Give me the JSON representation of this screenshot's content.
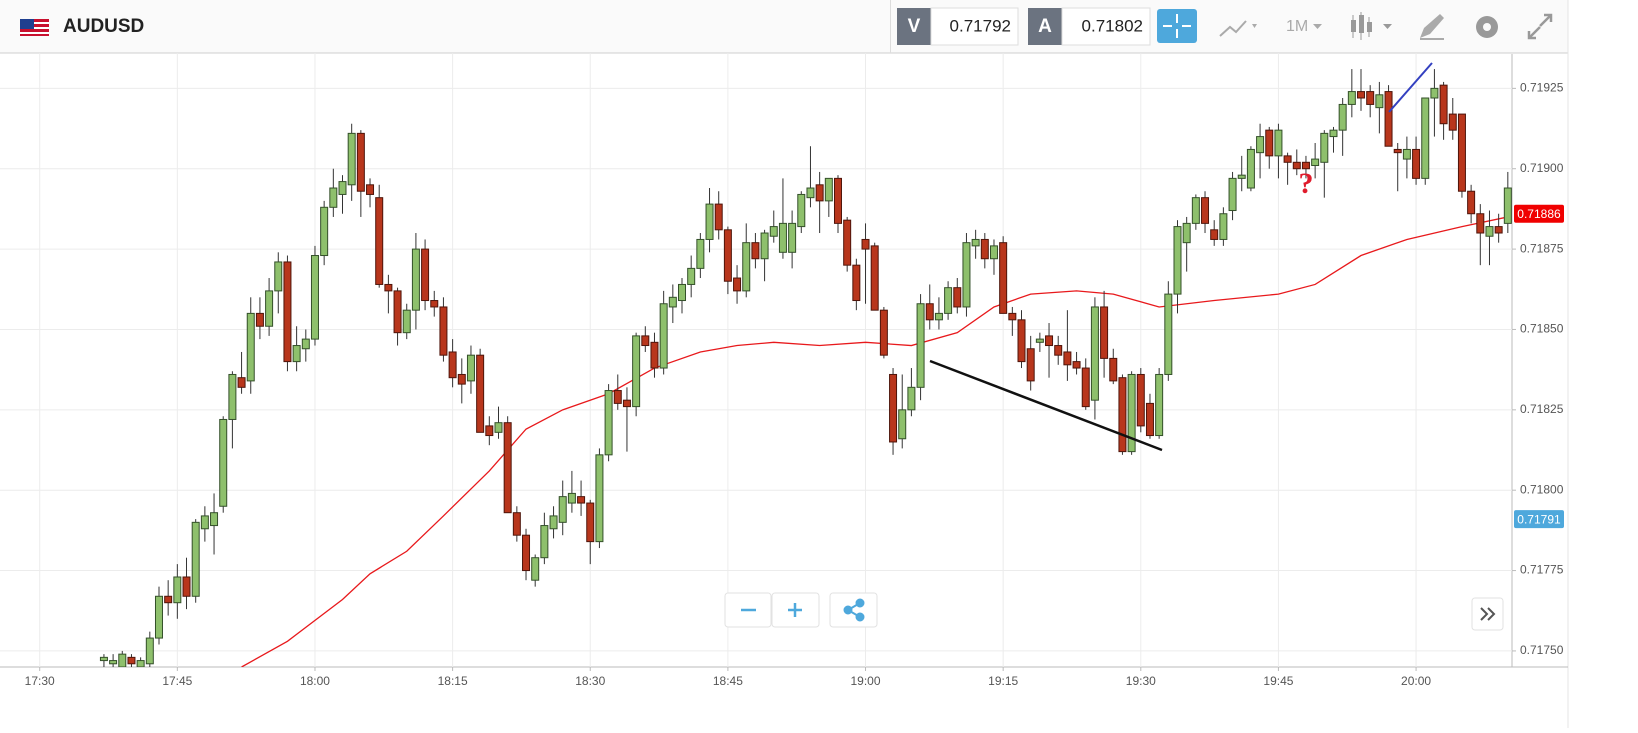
{
  "header": {
    "symbol": "AUDUSD",
    "bid_label": "V",
    "bid": "0.71792",
    "ask_label": "A",
    "ask": "0.71802",
    "timeframe": "1M"
  },
  "chart_data": {
    "type": "candlestick",
    "x": [
      "17:37",
      "17:38",
      "17:39",
      "17:40",
      "17:41",
      "17:42",
      "17:43",
      "17:44",
      "17:45",
      "17:46",
      "17:47",
      "17:48",
      "17:49",
      "17:50",
      "17:51",
      "17:52",
      "17:53",
      "17:54",
      "17:55",
      "17:56",
      "17:57",
      "17:58",
      "17:59",
      "18:00",
      "18:01",
      "18:02",
      "18:03",
      "18:04",
      "18:05",
      "18:06",
      "18:07",
      "18:08",
      "18:09",
      "18:10",
      "18:11",
      "18:12",
      "18:13",
      "18:14",
      "18:15",
      "18:16",
      "18:17",
      "18:18",
      "18:19",
      "18:20",
      "18:21",
      "18:22",
      "18:23",
      "18:24",
      "18:25",
      "18:26",
      "18:27",
      "18:28",
      "18:29",
      "18:30",
      "18:31",
      "18:32",
      "18:33",
      "18:34",
      "18:35",
      "18:36",
      "18:37",
      "18:38",
      "18:39",
      "18:40",
      "18:41",
      "18:42",
      "18:43",
      "18:44",
      "18:45",
      "18:46",
      "18:47",
      "18:48",
      "18:49",
      "18:50",
      "18:51",
      "18:52",
      "18:53",
      "18:54",
      "18:55",
      "18:56",
      "18:57",
      "18:58",
      "18:59",
      "19:00",
      "19:01",
      "19:02",
      "19:03",
      "19:04",
      "19:05",
      "19:06",
      "19:07",
      "19:08",
      "19:09",
      "19:10",
      "19:11",
      "19:12",
      "19:13",
      "19:14",
      "19:15",
      "19:16",
      "19:17",
      "19:18",
      "19:19",
      "19:20",
      "19:21",
      "19:22",
      "19:23",
      "19:24",
      "19:25",
      "19:26",
      "19:27",
      "19:28",
      "19:29",
      "19:30",
      "19:31",
      "19:32",
      "19:33",
      "19:34",
      "19:35",
      "19:36",
      "19:37",
      "19:38",
      "19:39",
      "19:40",
      "19:41",
      "19:42",
      "19:43",
      "19:44",
      "19:45",
      "19:46",
      "19:47",
      "19:48",
      "19:49",
      "19:50",
      "19:51",
      "19:52",
      "19:53",
      "19:54",
      "19:55",
      "19:56",
      "19:57",
      "19:58",
      "19:59",
      "20:00",
      "20:01",
      "20:02",
      "20:03",
      "20:04",
      "20:05",
      "20:06",
      "20:07",
      "20:08",
      "20:09",
      "20:10"
    ],
    "open": [
      0.71747,
      0.71746,
      0.71745,
      0.71748,
      0.71745,
      0.71746,
      0.71754,
      0.71767,
      0.71765,
      0.71773,
      0.71767,
      0.71788,
      0.71789,
      0.71795,
      0.71822,
      0.71835,
      0.71834,
      0.71855,
      0.71851,
      0.71862,
      0.71871,
      0.7184,
      0.71844,
      0.71847,
      0.71873,
      0.71888,
      0.71892,
      0.71895,
      0.71911,
      0.71895,
      0.71891,
      0.71864,
      0.71862,
      0.71849,
      0.71856,
      0.71875,
      0.71859,
      0.71857,
      0.71843,
      0.71836,
      0.71834,
      0.71842,
      0.7182,
      0.71818,
      0.71821,
      0.71793,
      0.71786,
      0.71772,
      0.71779,
      0.71788,
      0.7179,
      0.71796,
      0.71798,
      0.71796,
      0.71784,
      0.71811,
      0.71831,
      0.71828,
      0.71826,
      0.71848,
      0.71846,
      0.71838,
      0.71857,
      0.71859,
      0.71864,
      0.71869,
      0.71878,
      0.71889,
      0.71881,
      0.71866,
      0.71862,
      0.71877,
      0.71872,
      0.71879,
      0.71874,
      0.71874,
      0.71882,
      0.71891,
      0.71895,
      0.7189,
      0.71897,
      0.71884,
      0.7187,
      0.71878,
      0.71876,
      0.71856,
      0.71836,
      0.71816,
      0.71825,
      0.71832,
      0.71858,
      0.71853,
      0.71855,
      0.71863,
      0.71857,
      0.71876,
      0.71878,
      0.71872,
      0.71877,
      0.71855,
      0.71853,
      0.71844,
      0.71846,
      0.71848,
      0.71845,
      0.71843,
      0.7184,
      0.71838,
      0.71828,
      0.71857,
      0.71841,
      0.71835,
      0.71812,
      0.71836,
      0.71827,
      0.71817,
      0.71836,
      0.71861,
      0.71877,
      0.71883,
      0.71891,
      0.71881,
      0.71878,
      0.71887,
      0.71897,
      0.71894,
      0.71905,
      0.71912,
      0.71904,
      0.71904,
      0.71902,
      0.71902,
      0.71901,
      0.71902,
      0.7191,
      0.71912,
      0.7192,
      0.71924,
      0.71924,
      0.71919,
      0.71924,
      0.71906,
      0.71903,
      0.71906,
      0.71897,
      0.71922,
      0.71926,
      0.71917,
      0.71917,
      0.71893,
      0.71886,
      0.71879,
      0.71882,
      0.71883
    ],
    "high": [
      0.71749,
      0.71749,
      0.7175,
      0.71749,
      0.71748,
      0.71756,
      0.7177,
      0.71772,
      0.71777,
      0.71779,
      0.71791,
      0.71795,
      0.71799,
      0.71823,
      0.71837,
      0.71843,
      0.7186,
      0.7186,
      0.71866,
      0.71874,
      0.71873,
      0.71851,
      0.7185,
      0.71876,
      0.7189,
      0.719,
      0.71898,
      0.71914,
      0.71912,
      0.71897,
      0.71895,
      0.71867,
      0.71863,
      0.71858,
      0.7188,
      0.71878,
      0.71862,
      0.7186,
      0.71847,
      0.71841,
      0.71845,
      0.71844,
      0.71823,
      0.71826,
      0.71823,
      0.71795,
      0.71788,
      0.7178,
      0.71793,
      0.71795,
      0.71803,
      0.71806,
      0.71803,
      0.71797,
      0.71813,
      0.71833,
      0.71836,
      0.71832,
      0.71849,
      0.71851,
      0.71849,
      0.71862,
      0.71864,
      0.71866,
      0.71873,
      0.7188,
      0.71894,
      0.71893,
      0.71882,
      0.7187,
      0.71883,
      0.7188,
      0.71881,
      0.71887,
      0.71897,
      0.71887,
      0.71893,
      0.71907,
      0.71899,
      0.71897,
      0.71898,
      0.71885,
      0.71872,
      0.71883,
      0.71877,
      0.71857,
      0.71838,
      0.71836,
      0.71838,
      0.71861,
      0.71864,
      0.7186,
      0.71865,
      0.71866,
      0.7188,
      0.71881,
      0.7188,
      0.71878,
      0.71879,
      0.71857,
      0.71856,
      0.71848,
      0.71849,
      0.71852,
      0.71848,
      0.71856,
      0.71843,
      0.71841,
      0.7186,
      0.71862,
      0.71844,
      0.71836,
      0.71837,
      0.71838,
      0.7183,
      0.71838,
      0.71865,
      0.71884,
      0.71885,
      0.71892,
      0.71893,
      0.71884,
      0.71888,
      0.71899,
      0.71904,
      0.71907,
      0.71914,
      0.71913,
      0.71914,
      0.71905,
      0.71906,
      0.71904,
      0.71908,
      0.71912,
      0.71913,
      0.71922,
      0.71931,
      0.71931,
      0.71926,
      0.71927,
      0.71926,
      0.71908,
      0.7191,
      0.7191,
      0.71922,
      0.71931,
      0.71927,
      0.71922,
      0.71917,
      0.71895,
      0.71889,
      0.71887,
      0.71886,
      0.71899
    ],
    "low": [
      0.71745,
      0.71744,
      0.71744,
      0.71744,
      0.71743,
      0.71744,
      0.71752,
      0.71761,
      0.7176,
      0.71763,
      0.71765,
      0.71784,
      0.7178,
      0.71793,
      0.71813,
      0.7183,
      0.7183,
      0.71847,
      0.71848,
      0.71855,
      0.71837,
      0.71837,
      0.7184,
      0.71845,
      0.7187,
      0.71885,
      0.71886,
      0.7189,
      0.71885,
      0.71888,
      0.71863,
      0.71855,
      0.71845,
      0.71847,
      0.7185,
      0.71856,
      0.71854,
      0.7184,
      0.71832,
      0.71827,
      0.7183,
      0.71818,
      0.71814,
      0.71816,
      0.71793,
      0.71784,
      0.71772,
      0.7177,
      0.71777,
      0.71785,
      0.71786,
      0.71793,
      0.71792,
      0.71777,
      0.71782,
      0.71809,
      0.71825,
      0.71812,
      0.71823,
      0.71843,
      0.71835,
      0.71836,
      0.71852,
      0.71855,
      0.7186,
      0.71866,
      0.71874,
      0.71878,
      0.71861,
      0.71858,
      0.7186,
      0.71869,
      0.71865,
      0.71877,
      0.71872,
      0.71869,
      0.7188,
      0.71888,
      0.7188,
      0.71885,
      0.7188,
      0.71868,
      0.71856,
      0.71858,
      0.71856,
      0.71841,
      0.71811,
      0.71813,
      0.71823,
      0.71828,
      0.7185,
      0.7185,
      0.71853,
      0.71855,
      0.71854,
      0.71872,
      0.71869,
      0.71867,
      0.71855,
      0.71848,
      0.71838,
      0.71831,
      0.71843,
      0.71835,
      0.71839,
      0.71834,
      0.71836,
      0.71825,
      0.71822,
      0.71835,
      0.71833,
      0.71811,
      0.71811,
      0.71818,
      0.71816,
      0.71816,
      0.71834,
      0.71855,
      0.71868,
      0.71881,
      0.7188,
      0.71876,
      0.71876,
      0.71884,
      0.71893,
      0.71893,
      0.71897,
      0.719,
      0.71897,
      0.71895,
      0.71898,
      0.71897,
      0.71897,
      0.71891,
      0.71905,
      0.71904,
      0.71916,
      0.71918,
      0.71916,
      0.71911,
      0.71907,
      0.71893,
      0.71897,
      0.71895,
      0.71895,
      0.7191,
      0.71909,
      0.71909,
      0.71891,
      0.71883,
      0.7187,
      0.7187,
      0.71877,
      0.7188
    ],
    "close": [
      0.71748,
      0.71747,
      0.71749,
      0.71746,
      0.71747,
      0.71754,
      0.71767,
      0.71765,
      0.71773,
      0.71767,
      0.7179,
      0.71792,
      0.71793,
      0.71822,
      0.71836,
      0.71832,
      0.71855,
      0.71851,
      0.71862,
      0.71871,
      0.7184,
      0.71845,
      0.71847,
      0.71873,
      0.71888,
      0.71894,
      0.71896,
      0.71911,
      0.71893,
      0.71892,
      0.71864,
      0.71862,
      0.71849,
      0.71856,
      0.71875,
      0.71859,
      0.71857,
      0.71842,
      0.71835,
      0.71833,
      0.71842,
      0.71818,
      0.71817,
      0.71821,
      0.71793,
      0.71786,
      0.71775,
      0.71779,
      0.71789,
      0.71792,
      0.71798,
      0.71799,
      0.71796,
      0.71784,
      0.71811,
      0.71831,
      0.71827,
      0.71826,
      0.71848,
      0.71845,
      0.71838,
      0.71858,
      0.7186,
      0.71864,
      0.71869,
      0.71878,
      0.71889,
      0.71881,
      0.71865,
      0.71862,
      0.71877,
      0.71872,
      0.7188,
      0.71882,
      0.71883,
      0.71883,
      0.71892,
      0.71894,
      0.7189,
      0.71897,
      0.71883,
      0.7187,
      0.71859,
      0.71875,
      0.71856,
      0.71842,
      0.71815,
      0.71825,
      0.71832,
      0.71858,
      0.71853,
      0.71855,
      0.71863,
      0.71857,
      0.71877,
      0.71878,
      0.71872,
      0.71876,
      0.71855,
      0.71853,
      0.7184,
      0.71834,
      0.71847,
      0.71845,
      0.71842,
      0.71839,
      0.71838,
      0.71826,
      0.71857,
      0.71841,
      0.71834,
      0.71812,
      0.71836,
      0.7182,
      0.71817,
      0.71836,
      0.71861,
      0.71882,
      0.71883,
      0.71891,
      0.71883,
      0.71878,
      0.71886,
      0.71897,
      0.71898,
      0.71906,
      0.7191,
      0.71904,
      0.71912,
      0.71902,
      0.719,
      0.719,
      0.71903,
      0.71911,
      0.71912,
      0.7192,
      0.71924,
      0.71922,
      0.7192,
      0.71923,
      0.71907,
      0.71905,
      0.71906,
      0.71897,
      0.71922,
      0.71925,
      0.71914,
      0.71912,
      0.71893,
      0.71886,
      0.7188,
      0.71882,
      0.7188,
      0.71894
    ],
    "up_color": "#8ec06c",
    "down_color": "#b8361c",
    "overlay": {
      "color": "#e8191c",
      "x": [
        "17:52",
        "17:57",
        "18:03",
        "18:06",
        "18:10",
        "18:14",
        "18:19",
        "18:23",
        "18:27",
        "18:32",
        "18:37",
        "18:42",
        "18:46",
        "18:50",
        "18:55",
        "19:00",
        "19:05",
        "19:10",
        "19:14",
        "19:18",
        "19:23",
        "19:27",
        "19:32",
        "19:38",
        "19:45",
        "19:49",
        "19:54",
        "19:59",
        "20:05",
        "20:10"
      ],
      "values": [
        0.71745,
        0.71753,
        0.71766,
        0.71774,
        0.71781,
        0.71792,
        0.71806,
        0.71819,
        0.71825,
        0.7183,
        0.71838,
        0.71843,
        0.71845,
        0.71846,
        0.71845,
        0.71846,
        0.71845,
        0.71849,
        0.71857,
        0.71861,
        0.71862,
        0.71861,
        0.71857,
        0.71859,
        0.71861,
        0.71864,
        0.71873,
        0.71878,
        0.71882,
        0.71885
      ]
    },
    "price_tags": [
      {
        "value": 0.71886,
        "color": "#f00000"
      },
      {
        "value": 0.71791,
        "color": "#4ea8dc"
      }
    ],
    "annotation": "?",
    "xlim": [
      "17:26",
      "20:11"
    ],
    "xticks": [
      "17:30",
      "17:45",
      "18:00",
      "18:15",
      "18:30",
      "18:45",
      "19:00",
      "19:15",
      "19:30",
      "19:45",
      "20:00"
    ],
    "ylim": [
      0.71745,
      0.71936
    ],
    "yticks": [
      {
        "value": 0.7175,
        "label": "0.71750"
      },
      0.71775,
      {
        "value": 0.718,
        "label": "0.71800"
      },
      0.71825,
      {
        "value": 0.7185,
        "label": "0.71850"
      },
      0.71875,
      {
        "value": 0.719,
        "label": "0.71900"
      },
      0.71925
    ],
    "grid": true
  }
}
